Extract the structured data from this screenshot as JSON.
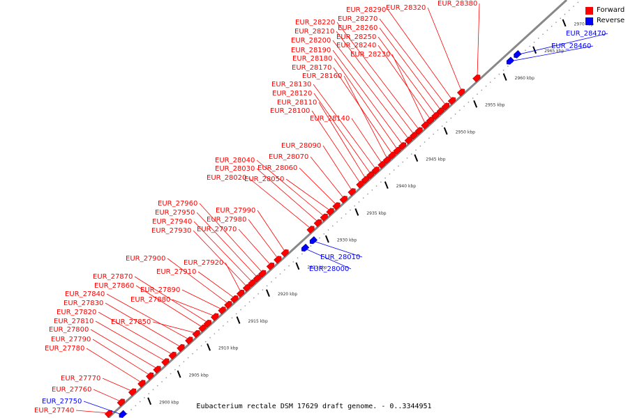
{
  "legend": {
    "forward": {
      "label": "Forward",
      "color": "#ff0000"
    },
    "reverse": {
      "label": "Reverse",
      "color": "#0000ff"
    }
  },
  "caption": "Eubacterium rectale DSM 17629 draft genome. - 0..3344951",
  "scale_labels": [
    "2900 kbp",
    "2905 kbp",
    "2910 kbp",
    "2915 kbp",
    "2920 kbp",
    "2925 kbp",
    "2930 kbp",
    "2935 kbp",
    "2940 kbp",
    "2945 kbp",
    "2950 kbp",
    "2955 kbp",
    "2960 kbp",
    "2965 kbp",
    "2970 kbp"
  ],
  "genes": [
    {
      "label": "EUR_27740",
      "strand": "forward"
    },
    {
      "label": "EUR_27750",
      "strand": "reverse"
    },
    {
      "label": "EUR_27760",
      "strand": "forward"
    },
    {
      "label": "EUR_27770",
      "strand": "forward"
    },
    {
      "label": "EUR_27780",
      "strand": "forward"
    },
    {
      "label": "EUR_27790",
      "strand": "forward"
    },
    {
      "label": "EUR_27800",
      "strand": "forward"
    },
    {
      "label": "EUR_27810",
      "strand": "forward"
    },
    {
      "label": "EUR_27820",
      "strand": "forward"
    },
    {
      "label": "EUR_27830",
      "strand": "forward"
    },
    {
      "label": "EUR_27840",
      "strand": "forward"
    },
    {
      "label": "EUR_27850",
      "strand": "forward"
    },
    {
      "label": "EUR_27860",
      "strand": "forward"
    },
    {
      "label": "EUR_27870",
      "strand": "forward"
    },
    {
      "label": "EUR_27880",
      "strand": "forward"
    },
    {
      "label": "EUR_27890",
      "strand": "forward"
    },
    {
      "label": "EUR_27900",
      "strand": "forward"
    },
    {
      "label": "EUR_27910",
      "strand": "forward"
    },
    {
      "label": "EUR_27920",
      "strand": "forward"
    },
    {
      "label": "EUR_27930",
      "strand": "forward"
    },
    {
      "label": "EUR_27940",
      "strand": "forward"
    },
    {
      "label": "EUR_27950",
      "strand": "forward"
    },
    {
      "label": "EUR_27960",
      "strand": "forward"
    },
    {
      "label": "EUR_27970",
      "strand": "forward"
    },
    {
      "label": "EUR_27980",
      "strand": "forward"
    },
    {
      "label": "EUR_27990",
      "strand": "forward"
    },
    {
      "label": "EUR_28000",
      "strand": "reverse"
    },
    {
      "label": "EUR_28010",
      "strand": "reverse"
    },
    {
      "label": "EUR_28020",
      "strand": "forward"
    },
    {
      "label": "EUR_28030",
      "strand": "forward"
    },
    {
      "label": "EUR_28040",
      "strand": "forward"
    },
    {
      "label": "EUR_28050",
      "strand": "forward"
    },
    {
      "label": "EUR_28060",
      "strand": "forward"
    },
    {
      "label": "EUR_28070",
      "strand": "forward"
    },
    {
      "label": "EUR_28090",
      "strand": "forward"
    },
    {
      "label": "EUR_28100",
      "strand": "forward"
    },
    {
      "label": "EUR_28110",
      "strand": "forward"
    },
    {
      "label": "EUR_28120",
      "strand": "forward"
    },
    {
      "label": "EUR_28130",
      "strand": "forward"
    },
    {
      "label": "EUR_28140",
      "strand": "forward"
    },
    {
      "label": "EUR_28160",
      "strand": "forward"
    },
    {
      "label": "EUR_28170",
      "strand": "forward"
    },
    {
      "label": "EUR_28180",
      "strand": "forward"
    },
    {
      "label": "EUR_28190",
      "strand": "forward"
    },
    {
      "label": "EUR_28200",
      "strand": "forward"
    },
    {
      "label": "EUR_28210",
      "strand": "forward"
    },
    {
      "label": "EUR_28220",
      "strand": "forward"
    },
    {
      "label": "EUR_28230",
      "strand": "forward"
    },
    {
      "label": "EUR_28240",
      "strand": "forward"
    },
    {
      "label": "EUR_28250",
      "strand": "forward"
    },
    {
      "label": "EUR_28260",
      "strand": "forward"
    },
    {
      "label": "EUR_28270",
      "strand": "forward"
    },
    {
      "label": "EUR_28290",
      "strand": "forward"
    },
    {
      "label": "EUR_28320",
      "strand": "forward"
    },
    {
      "label": "EUR_28380",
      "strand": "forward"
    },
    {
      "label": "EUR_28460",
      "strand": "reverse"
    },
    {
      "label": "EUR_28470",
      "strand": "reverse"
    }
  ]
}
